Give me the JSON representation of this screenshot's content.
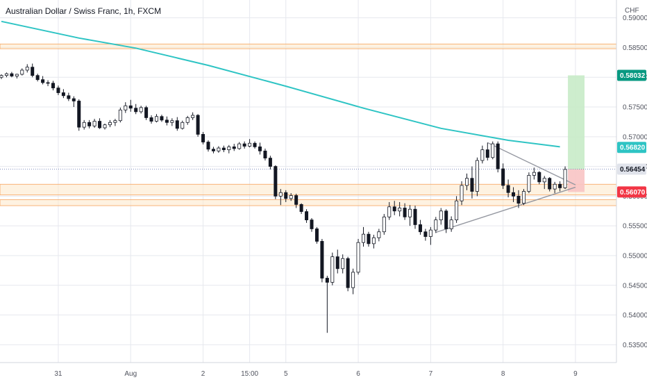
{
  "title": "Australian Dollar / Swiss Franc, 1h, FXCM",
  "currency": "CHF",
  "colors": {
    "up": "#ffffff",
    "down": "#131722",
    "wick": "#131722",
    "ma": "#2ec4c4",
    "zone_fill": "#fde7c9",
    "zone_line": "#f7a35c",
    "target_fill": "#c8ebc8",
    "stop_fill": "#f8c4c4",
    "trend": "#9598a1",
    "grid": "#e6e8ee",
    "target_tag": "#089981",
    "stop_tag": "#f23645",
    "ma_tag": "#2ec4c4",
    "price_tag": "#e0e3eb"
  },
  "chart_data": {
    "type": "candlestick",
    "instrument": "Australian Dollar / Swiss Franc",
    "timeframe": "1h",
    "source": "FXCM",
    "y_axis": {
      "ticks": [
        "0.59000",
        "0.58500",
        "0.58000",
        "0.57500",
        "0.57000",
        "0.56500",
        "0.56000",
        "0.55500",
        "0.55000",
        "0.54500",
        "0.54000",
        "0.53500"
      ],
      "range": [
        0.532,
        0.593
      ]
    },
    "x_axis": {
      "labels": [
        {
          "text": "31",
          "idx": 11
        },
        {
          "text": "Aug",
          "idx": 25
        },
        {
          "text": "2",
          "idx": 39
        },
        {
          "text": "15:00",
          "idx": 48
        },
        {
          "text": "5",
          "idx": 55
        },
        {
          "text": "6",
          "idx": 69
        },
        {
          "text": "7",
          "idx": 83
        },
        {
          "text": "8",
          "idx": 97
        },
        {
          "text": "9",
          "idx": 111
        }
      ],
      "count": 115
    },
    "price_labels": [
      {
        "text": "0.58032",
        "value": 0.58032,
        "kind": "target"
      },
      {
        "text": "0.56820",
        "value": 0.5682,
        "kind": "ma"
      },
      {
        "text": "0.56454",
        "value": 0.56454,
        "kind": "price"
      },
      {
        "text": "0.56070",
        "value": 0.5607,
        "kind": "stop"
      }
    ],
    "zones": [
      {
        "from": 0.5848,
        "to": 0.5856
      },
      {
        "from": 0.5602,
        "to": 0.562
      },
      {
        "from": 0.5584,
        "to": 0.5594
      }
    ],
    "position": {
      "entry": 0.56454,
      "target": 0.58032,
      "stop": 0.5607,
      "from_idx": 109
    },
    "trendlines": [
      {
        "x1": 94,
        "y1": 0.569,
        "x2": 111,
        "y2": 0.5619
      },
      {
        "x1": 84,
        "y1": 0.5539,
        "x2": 111,
        "y2": 0.5615
      }
    ],
    "moving_average": [
      {
        "idx": 0,
        "value": 0.5894
      },
      {
        "idx": 15,
        "value": 0.5866
      },
      {
        "idx": 26,
        "value": 0.5849
      },
      {
        "idx": 40,
        "value": 0.582
      },
      {
        "idx": 55,
        "value": 0.5785
      },
      {
        "idx": 70,
        "value": 0.5748
      },
      {
        "idx": 85,
        "value": 0.5714
      },
      {
        "idx": 98,
        "value": 0.5694
      },
      {
        "idx": 108,
        "value": 0.5683
      }
    ],
    "candles": [
      [
        0.58,
        0.5805,
        0.5797,
        0.5803
      ],
      [
        0.5803,
        0.5808,
        0.58,
        0.5806
      ],
      [
        0.5806,
        0.5809,
        0.58,
        0.5802
      ],
      [
        0.5802,
        0.5806,
        0.5798,
        0.5805
      ],
      [
        0.5805,
        0.5815,
        0.5803,
        0.5812
      ],
      [
        0.5812,
        0.5822,
        0.5808,
        0.5817
      ],
      [
        0.5817,
        0.5823,
        0.58,
        0.5803
      ],
      [
        0.5803,
        0.5806,
        0.5793,
        0.5796
      ],
      [
        0.5796,
        0.5802,
        0.5788,
        0.5791
      ],
      [
        0.5791,
        0.5795,
        0.5785,
        0.579
      ],
      [
        0.579,
        0.5794,
        0.5778,
        0.5782
      ],
      [
        0.5782,
        0.5786,
        0.577,
        0.5774
      ],
      [
        0.5774,
        0.578,
        0.5765,
        0.5769
      ],
      [
        0.5769,
        0.5774,
        0.576,
        0.5764
      ],
      [
        0.5764,
        0.5768,
        0.575,
        0.576
      ],
      [
        0.576,
        0.5763,
        0.571,
        0.5716
      ],
      [
        0.5716,
        0.5728,
        0.5712,
        0.5724
      ],
      [
        0.5724,
        0.5728,
        0.5714,
        0.5718
      ],
      [
        0.5718,
        0.573,
        0.5715,
        0.5726
      ],
      [
        0.5726,
        0.5731,
        0.5713,
        0.5715
      ],
      [
        0.5715,
        0.5722,
        0.5712,
        0.572
      ],
      [
        0.572,
        0.5728,
        0.5716,
        0.5724
      ],
      [
        0.5724,
        0.573,
        0.5718,
        0.5727
      ],
      [
        0.5727,
        0.5749,
        0.5724,
        0.5745
      ],
      [
        0.5745,
        0.5758,
        0.574,
        0.5752
      ],
      [
        0.5752,
        0.5762,
        0.5742,
        0.5748
      ],
      [
        0.5748,
        0.5755,
        0.5738,
        0.5742
      ],
      [
        0.5742,
        0.5752,
        0.5739,
        0.5749
      ],
      [
        0.5749,
        0.5752,
        0.5728,
        0.5732
      ],
      [
        0.5732,
        0.5736,
        0.5722,
        0.5726
      ],
      [
        0.5726,
        0.5738,
        0.5724,
        0.5734
      ],
      [
        0.5734,
        0.5737,
        0.5725,
        0.5728
      ],
      [
        0.5728,
        0.5734,
        0.5719,
        0.5724
      ],
      [
        0.5724,
        0.5731,
        0.5718,
        0.5727
      ],
      [
        0.5727,
        0.5733,
        0.571,
        0.5714
      ],
      [
        0.5714,
        0.5727,
        0.5712,
        0.5724
      ],
      [
        0.5724,
        0.5735,
        0.572,
        0.5732
      ],
      [
        0.5732,
        0.5741,
        0.5728,
        0.5736
      ],
      [
        0.5736,
        0.5738,
        0.57,
        0.5704
      ],
      [
        0.5704,
        0.5708,
        0.5687,
        0.5691
      ],
      [
        0.5691,
        0.5694,
        0.5675,
        0.5679
      ],
      [
        0.5679,
        0.5683,
        0.5672,
        0.5676
      ],
      [
        0.5676,
        0.5684,
        0.5673,
        0.5681
      ],
      [
        0.5681,
        0.5685,
        0.5674,
        0.5678
      ],
      [
        0.5678,
        0.5686,
        0.5672,
        0.5683
      ],
      [
        0.5683,
        0.5688,
        0.5676,
        0.568
      ],
      [
        0.568,
        0.5691,
        0.5678,
        0.5688
      ],
      [
        0.5688,
        0.5692,
        0.568,
        0.5684
      ],
      [
        0.5684,
        0.5696,
        0.5682,
        0.5689
      ],
      [
        0.5689,
        0.5692,
        0.568,
        0.5683
      ],
      [
        0.5683,
        0.569,
        0.567,
        0.5676
      ],
      [
        0.5676,
        0.568,
        0.566,
        0.5664
      ],
      [
        0.5664,
        0.5668,
        0.5645,
        0.565
      ],
      [
        0.565,
        0.5652,
        0.5595,
        0.56
      ],
      [
        0.56,
        0.5612,
        0.5585,
        0.5606
      ],
      [
        0.5606,
        0.561,
        0.559,
        0.5596
      ],
      [
        0.5596,
        0.5605,
        0.5592,
        0.5601
      ],
      [
        0.5601,
        0.5604,
        0.558,
        0.5586
      ],
      [
        0.5586,
        0.5588,
        0.557,
        0.5574
      ],
      [
        0.5574,
        0.5578,
        0.5555,
        0.556
      ],
      [
        0.556,
        0.5563,
        0.554,
        0.5545
      ],
      [
        0.5545,
        0.5548,
        0.552,
        0.5524
      ],
      [
        0.5524,
        0.5528,
        0.5455,
        0.5462
      ],
      [
        0.5462,
        0.5466,
        0.537,
        0.5455
      ],
      [
        0.5455,
        0.5505,
        0.545,
        0.5498
      ],
      [
        0.5498,
        0.551,
        0.547,
        0.5478
      ],
      [
        0.5478,
        0.5502,
        0.547,
        0.5495
      ],
      [
        0.5495,
        0.5498,
        0.544,
        0.5446
      ],
      [
        0.5446,
        0.5478,
        0.5435,
        0.5472
      ],
      [
        0.5472,
        0.5528,
        0.5468,
        0.5522
      ],
      [
        0.5522,
        0.5548,
        0.5515,
        0.5536
      ],
      [
        0.5536,
        0.554,
        0.5515,
        0.552
      ],
      [
        0.552,
        0.5535,
        0.5512,
        0.553
      ],
      [
        0.553,
        0.5545,
        0.5524,
        0.554
      ],
      [
        0.554,
        0.557,
        0.5535,
        0.5565
      ],
      [
        0.5565,
        0.559,
        0.556,
        0.5582
      ],
      [
        0.5582,
        0.5592,
        0.5568,
        0.5575
      ],
      [
        0.5575,
        0.559,
        0.5566,
        0.558
      ],
      [
        0.558,
        0.5588,
        0.556,
        0.5565
      ],
      [
        0.5565,
        0.5585,
        0.555,
        0.5578
      ],
      [
        0.5578,
        0.5584,
        0.5545,
        0.5552
      ],
      [
        0.5552,
        0.556,
        0.5535,
        0.554
      ],
      [
        0.554,
        0.5545,
        0.5525,
        0.5532
      ],
      [
        0.5532,
        0.5548,
        0.5518,
        0.5543
      ],
      [
        0.5543,
        0.5565,
        0.5538,
        0.556
      ],
      [
        0.556,
        0.558,
        0.5552,
        0.5575
      ],
      [
        0.5575,
        0.5578,
        0.5538,
        0.5545
      ],
      [
        0.5545,
        0.5566,
        0.554,
        0.556
      ],
      [
        0.556,
        0.56,
        0.5555,
        0.5592
      ],
      [
        0.5592,
        0.5625,
        0.5585,
        0.5618
      ],
      [
        0.5618,
        0.5638,
        0.561,
        0.563
      ],
      [
        0.563,
        0.565,
        0.5596,
        0.5608
      ],
      [
        0.5608,
        0.5665,
        0.56,
        0.566
      ],
      [
        0.566,
        0.5685,
        0.5655,
        0.5678
      ],
      [
        0.5678,
        0.569,
        0.566,
        0.5665
      ],
      [
        0.5665,
        0.5692,
        0.5662,
        0.5688
      ],
      [
        0.5688,
        0.5692,
        0.564,
        0.5646
      ],
      [
        0.5646,
        0.5655,
        0.5612,
        0.5618
      ],
      [
        0.5618,
        0.5628,
        0.5598,
        0.5606
      ],
      [
        0.5606,
        0.5615,
        0.559,
        0.56
      ],
      [
        0.56,
        0.561,
        0.558,
        0.5588
      ],
      [
        0.5588,
        0.5612,
        0.5585,
        0.5608
      ],
      [
        0.5608,
        0.564,
        0.5605,
        0.5635
      ],
      [
        0.5635,
        0.5648,
        0.5628,
        0.564
      ],
      [
        0.564,
        0.5642,
        0.562,
        0.5624
      ],
      [
        0.5624,
        0.5634,
        0.5612,
        0.563
      ],
      [
        0.563,
        0.5632,
        0.5608,
        0.5612
      ],
      [
        0.5612,
        0.5624,
        0.5605,
        0.562
      ],
      [
        0.562,
        0.5625,
        0.5608,
        0.5614
      ],
      [
        0.5614,
        0.565,
        0.5612,
        0.5645
      ]
    ]
  }
}
